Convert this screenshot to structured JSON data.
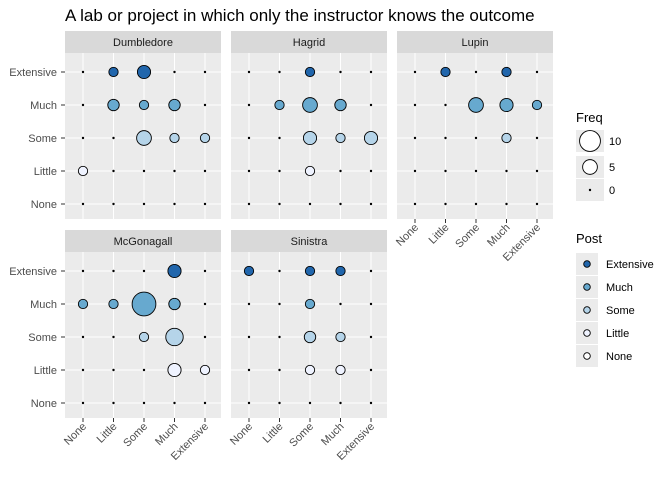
{
  "chart_data": {
    "type": "scatter",
    "title": "A lab or project in which only the instructor knows the outcome",
    "levels": [
      "None",
      "Little",
      "Some",
      "Much",
      "Extensive"
    ],
    "panels": [
      {
        "name": "Dumbledore",
        "points": [
          {
            "x": "Little",
            "y": "Extensive",
            "freq": 2
          },
          {
            "x": "Some",
            "y": "Extensive",
            "freq": 4
          },
          {
            "x": "Little",
            "y": "Much",
            "freq": 3
          },
          {
            "x": "Some",
            "y": "Much",
            "freq": 2
          },
          {
            "x": "Much",
            "y": "Much",
            "freq": 3
          },
          {
            "x": "Some",
            "y": "Some",
            "freq": 5
          },
          {
            "x": "Much",
            "y": "Some",
            "freq": 2
          },
          {
            "x": "Extensive",
            "y": "Some",
            "freq": 2
          },
          {
            "x": "None",
            "y": "Little",
            "freq": 2
          }
        ]
      },
      {
        "name": "Hagrid",
        "points": [
          {
            "x": "Some",
            "y": "Extensive",
            "freq": 2
          },
          {
            "x": "Little",
            "y": "Much",
            "freq": 2
          },
          {
            "x": "Some",
            "y": "Much",
            "freq": 5
          },
          {
            "x": "Much",
            "y": "Much",
            "freq": 3
          },
          {
            "x": "Some",
            "y": "Some",
            "freq": 4
          },
          {
            "x": "Much",
            "y": "Some",
            "freq": 2
          },
          {
            "x": "Extensive",
            "y": "Some",
            "freq": 4
          },
          {
            "x": "Some",
            "y": "Little",
            "freq": 2
          }
        ]
      },
      {
        "name": "Lupin",
        "points": [
          {
            "x": "Little",
            "y": "Extensive",
            "freq": 2
          },
          {
            "x": "Much",
            "y": "Extensive",
            "freq": 2
          },
          {
            "x": "Some",
            "y": "Much",
            "freq": 5
          },
          {
            "x": "Much",
            "y": "Much",
            "freq": 4
          },
          {
            "x": "Extensive",
            "y": "Much",
            "freq": 2
          },
          {
            "x": "Much",
            "y": "Some",
            "freq": 2
          }
        ]
      },
      {
        "name": "McGonagall",
        "points": [
          {
            "x": "Much",
            "y": "Extensive",
            "freq": 4
          },
          {
            "x": "None",
            "y": "Much",
            "freq": 2
          },
          {
            "x": "Little",
            "y": "Much",
            "freq": 2
          },
          {
            "x": "Some",
            "y": "Much",
            "freq": 13
          },
          {
            "x": "Much",
            "y": "Much",
            "freq": 3
          },
          {
            "x": "Some",
            "y": "Some",
            "freq": 2
          },
          {
            "x": "Much",
            "y": "Some",
            "freq": 7
          },
          {
            "x": "Much",
            "y": "Little",
            "freq": 4
          },
          {
            "x": "Extensive",
            "y": "Little",
            "freq": 2
          }
        ]
      },
      {
        "name": "Sinistra",
        "points": [
          {
            "x": "None",
            "y": "Extensive",
            "freq": 2
          },
          {
            "x": "Some",
            "y": "Extensive",
            "freq": 2
          },
          {
            "x": "Much",
            "y": "Extensive",
            "freq": 2
          },
          {
            "x": "Some",
            "y": "Much",
            "freq": 2
          },
          {
            "x": "Some",
            "y": "Some",
            "freq": 3
          },
          {
            "x": "Much",
            "y": "Some",
            "freq": 2
          },
          {
            "x": "Some",
            "y": "Little",
            "freq": 2
          },
          {
            "x": "Much",
            "y": "Little",
            "freq": 2
          }
        ]
      }
    ],
    "legend": {
      "position": "right",
      "size": {
        "title": "Freq",
        "breaks": [
          10,
          5,
          0
        ]
      },
      "fill": {
        "title": "Post",
        "levels": [
          "Extensive",
          "Much",
          "Some",
          "Little",
          "None"
        ]
      }
    },
    "colors": {
      "Extensive": "#2166ac",
      "Much": "#67a9cf",
      "Some": "#b5d4e9",
      "Little": "#eff3ff",
      "None": "#ffffff",
      "panel_bg": "#ebebeb",
      "strip_bg": "#d9d9d9",
      "grid": "#ffffff"
    },
    "grid": true
  }
}
